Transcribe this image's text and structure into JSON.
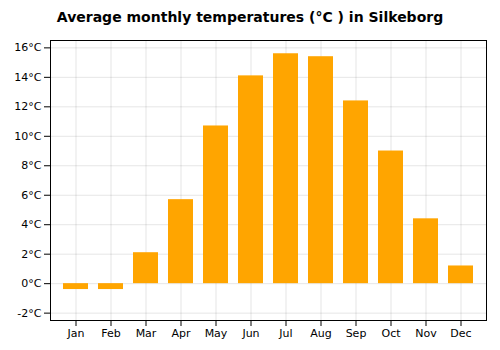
{
  "chart_data": {
    "type": "bar",
    "title": "Average monthly temperatures (°C ) in Silkeborg",
    "categories": [
      "Jan",
      "Feb",
      "Mar",
      "Apr",
      "May",
      "Jun",
      "Jul",
      "Aug",
      "Sep",
      "Oct",
      "Nov",
      "Dec"
    ],
    "values": [
      -0.4,
      -0.4,
      2.1,
      5.7,
      10.7,
      14.1,
      15.6,
      15.4,
      12.4,
      9.0,
      4.4,
      1.2
    ],
    "color": "#FFA500",
    "ylim": [
      -2.5,
      16.5
    ],
    "yticks": [
      {
        "value": -2,
        "label": "-2°C"
      },
      {
        "value": 0,
        "label": "0°C"
      },
      {
        "value": 2,
        "label": "2°C"
      },
      {
        "value": 4,
        "label": "4°C"
      },
      {
        "value": 6,
        "label": "6°C"
      },
      {
        "value": 8,
        "label": "8°C"
      },
      {
        "value": 10,
        "label": "10°C"
      },
      {
        "value": 12,
        "label": "12°C"
      },
      {
        "value": 14,
        "label": "14°C"
      },
      {
        "value": 16,
        "label": "16°C"
      }
    ],
    "grid": true
  }
}
